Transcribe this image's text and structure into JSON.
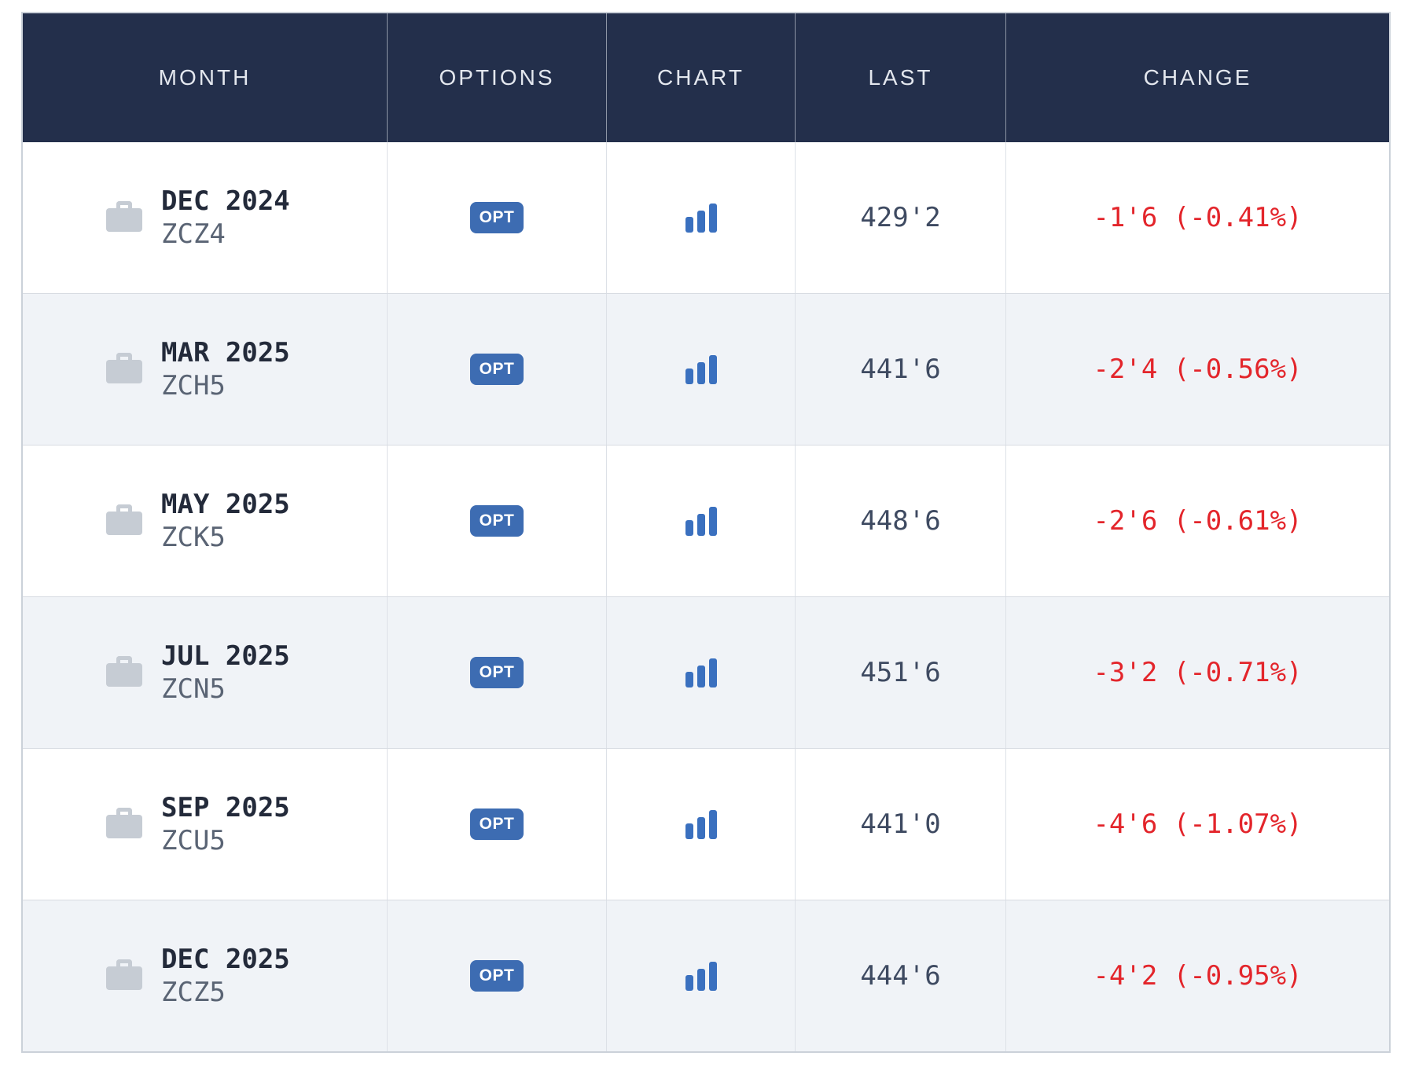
{
  "table": {
    "columns": [
      {
        "key": "month",
        "label": "MONTH"
      },
      {
        "key": "options",
        "label": "OPTIONS"
      },
      {
        "key": "chart",
        "label": "CHART"
      },
      {
        "key": "last",
        "label": "LAST"
      },
      {
        "key": "change",
        "label": "CHANGE"
      }
    ],
    "opt_button_label": "OPT",
    "rows": [
      {
        "month": "DEC 2024",
        "symbol": "ZCZ4",
        "last": "429'2",
        "change": "-1'6 (-0.41%)"
      },
      {
        "month": "MAR 2025",
        "symbol": "ZCH5",
        "last": "441'6",
        "change": "-2'4 (-0.56%)"
      },
      {
        "month": "MAY 2025",
        "symbol": "ZCK5",
        "last": "448'6",
        "change": "-2'6 (-0.61%)"
      },
      {
        "month": "JUL 2025",
        "symbol": "ZCN5",
        "last": "451'6",
        "change": "-3'2 (-0.71%)"
      },
      {
        "month": "SEP 2025",
        "symbol": "ZCU5",
        "last": "441'0",
        "change": "-4'6 (-1.07%)"
      },
      {
        "month": "DEC 2025",
        "symbol": "ZCZ5",
        "last": "444'6",
        "change": "-4'2 (-0.95%)"
      }
    ]
  },
  "icons": {
    "month_icon": "briefcase-icon",
    "chart_icon": "bar-chart-icon"
  },
  "colors": {
    "header_background": "#232f4b",
    "header_text": "#e3e7ee",
    "row_alt_background": "#f0f3f7",
    "border": "#d8dce2",
    "opt_button_blue": "#3d6cb2",
    "chart_bar_blue": "#3a70bf",
    "negative_change_red": "#e3252b",
    "last_text": "#3e4a61",
    "month_text": "#232a3a",
    "symbol_text": "#5a6474",
    "briefcase_gray": "#c6ccd4"
  }
}
